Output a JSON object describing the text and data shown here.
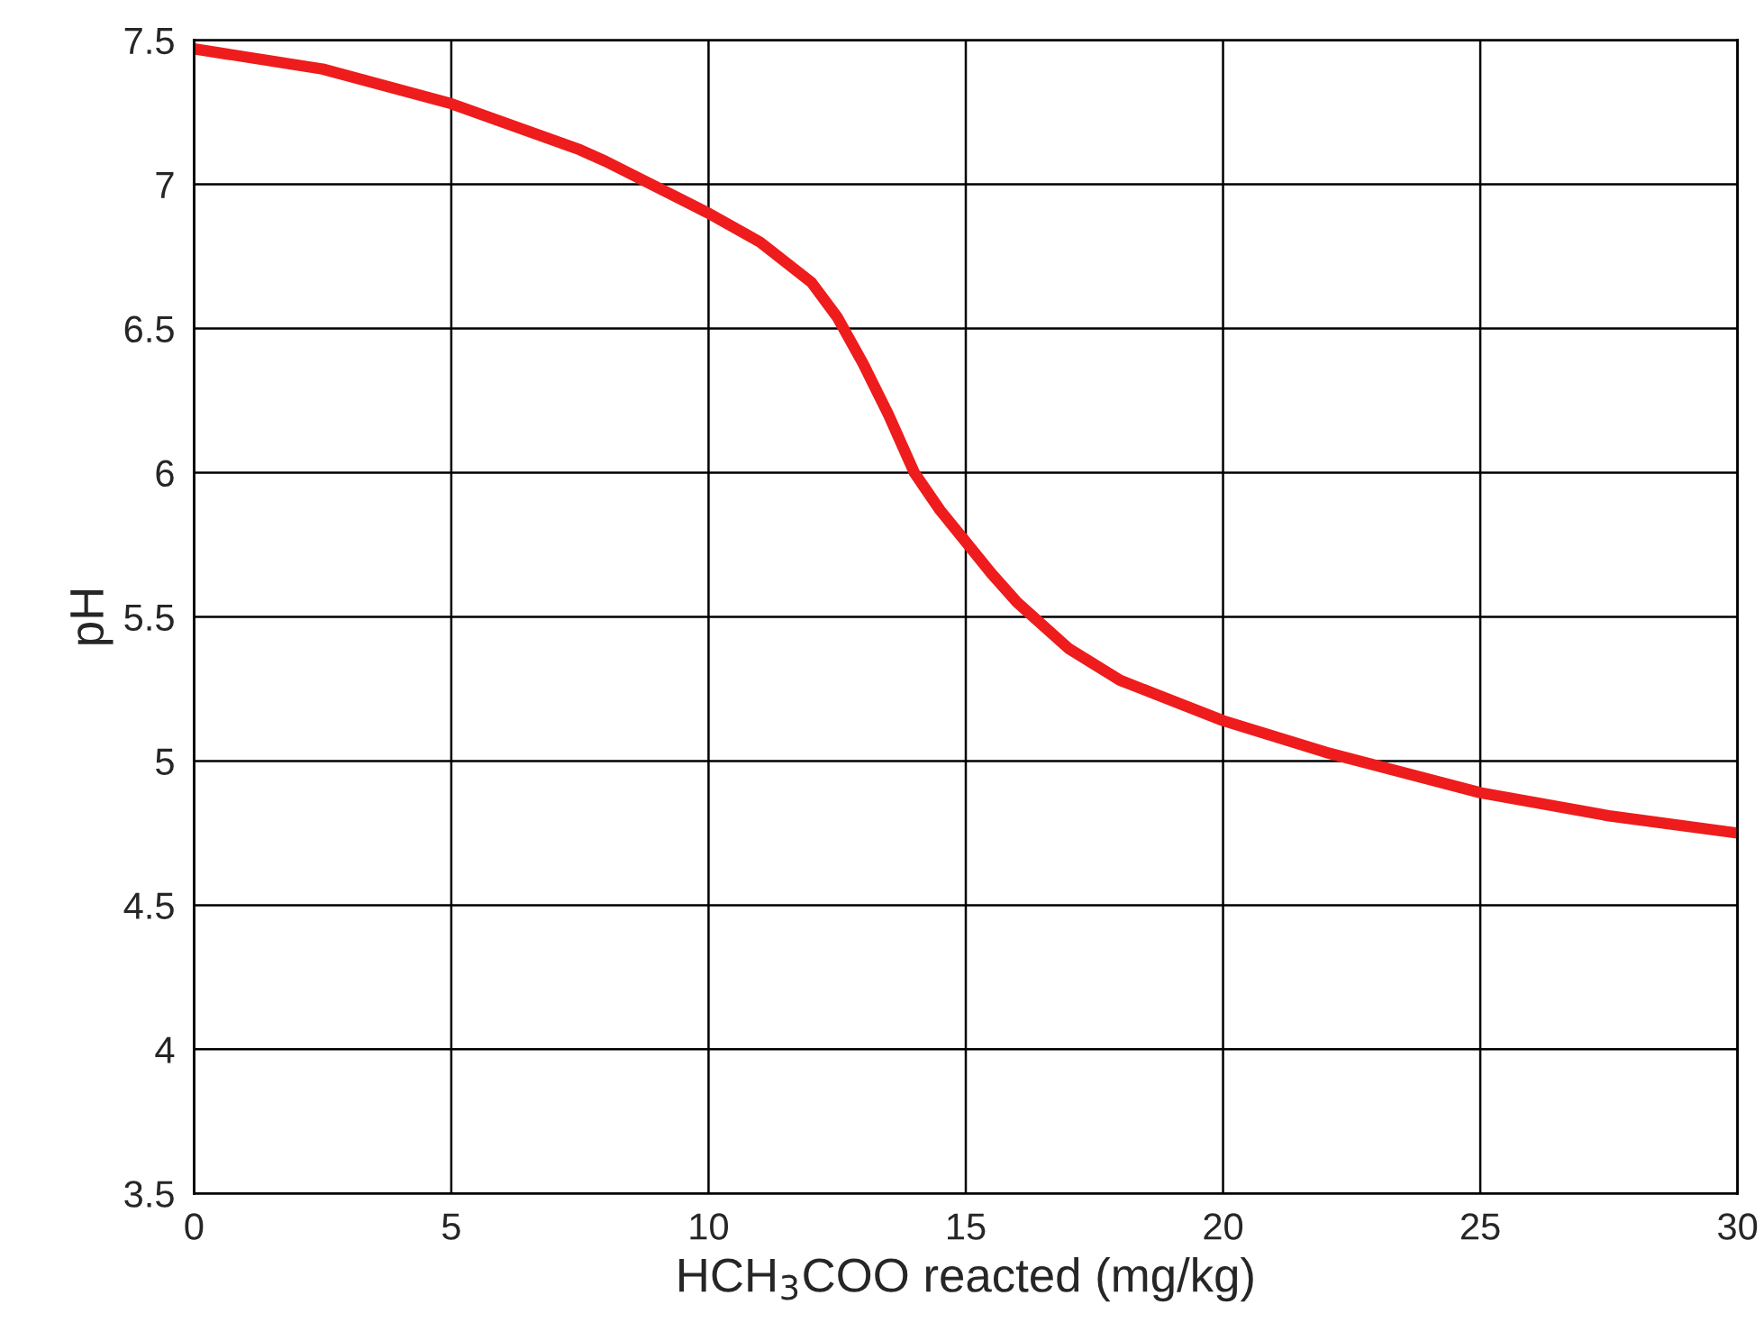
{
  "chart_data": {
    "type": "line",
    "xlabel": "HCH$_{3}$COO reacted (mg/kg)",
    "ylabel": "pH",
    "xlim": [
      0,
      30
    ],
    "xticks": [
      0,
      5,
      10,
      15,
      20,
      25,
      30
    ],
    "ylim": [
      3.5,
      7.5
    ],
    "yticks": [
      3.5,
      4,
      4.5,
      5,
      5.5,
      6,
      6.5,
      7,
      7.5
    ],
    "grid": true,
    "marker": "none",
    "line_style": "solid",
    "series": [
      {
        "color": "#ee1c1c",
        "x": [
          0,
          2.5,
          5,
          7.5,
          8,
          10,
          11,
          12,
          12.5,
          13,
          13.5,
          14,
          14.5,
          15,
          15.5,
          16,
          17,
          18,
          20,
          22,
          25,
          27.5,
          30
        ],
        "values": [
          7.47,
          7.4,
          7.28,
          7.12,
          7.08,
          6.9,
          6.8,
          6.66,
          6.54,
          6.38,
          6.2,
          6.0,
          5.87,
          5.76,
          5.65,
          5.55,
          5.39,
          5.28,
          5.14,
          5.03,
          4.89,
          4.81,
          4.75
        ]
      }
    ]
  }
}
